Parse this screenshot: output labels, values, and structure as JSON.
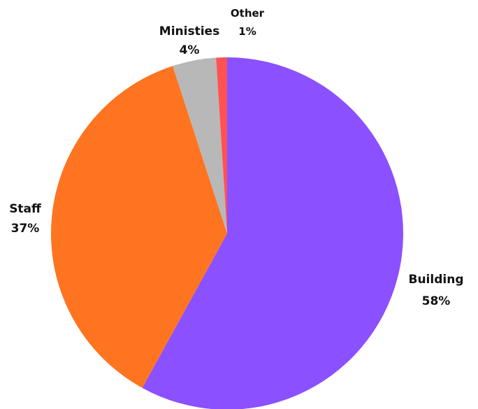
{
  "chart_data": {
    "type": "pie",
    "slices": [
      {
        "label": "Building",
        "value": 58,
        "value_label": "58%",
        "color": "#8B50FF"
      },
      {
        "label": "Staff",
        "value": 37,
        "value_label": "37%",
        "color": "#FF7420"
      },
      {
        "label": "Ministies",
        "value": 4,
        "value_label": "4%",
        "color": "#B8B8B8"
      },
      {
        "label": "Other",
        "value": 1,
        "value_label": "1%",
        "color": "#FF5252"
      }
    ],
    "start_angle": "12 o'clock",
    "direction": "clockwise",
    "legend": "none"
  }
}
